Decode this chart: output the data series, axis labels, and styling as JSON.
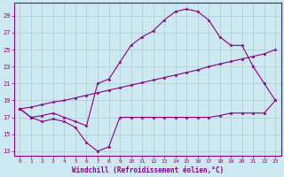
{
  "xlabel": "Windchill (Refroidissement éolien,°C)",
  "bg_color": "#cce8f0",
  "line_color": "#880088",
  "grid_color": "#aacccc",
  "xlim": [
    -0.5,
    23.5
  ],
  "ylim": [
    12.5,
    30.5
  ],
  "yticks": [
    13,
    15,
    17,
    19,
    21,
    23,
    25,
    27,
    29
  ],
  "xticks": [
    0,
    1,
    2,
    3,
    4,
    5,
    6,
    7,
    8,
    9,
    10,
    11,
    12,
    13,
    14,
    15,
    16,
    17,
    18,
    19,
    20,
    21,
    22,
    23
  ],
  "line1_x": [
    0,
    1,
    2,
    3,
    4,
    5,
    6,
    7,
    8,
    9,
    10,
    11,
    12,
    13,
    14,
    15,
    16,
    17,
    18,
    19,
    20,
    21,
    22,
    23
  ],
  "line1_y": [
    18.0,
    17.0,
    17.2,
    17.5,
    17.0,
    16.5,
    16.0,
    21.0,
    21.5,
    23.5,
    25.5,
    26.5,
    27.2,
    28.5,
    29.5,
    29.8,
    29.5,
    28.5,
    26.5,
    25.5,
    25.5,
    23.0,
    21.0,
    19.0
  ],
  "line2_x": [
    0,
    1,
    2,
    3,
    4,
    5,
    6,
    7,
    8,
    9,
    10,
    11,
    12,
    13,
    14,
    15,
    16,
    17,
    18,
    19,
    20,
    21,
    22,
    23
  ],
  "line2_y": [
    18.0,
    17.0,
    16.5,
    16.8,
    16.5,
    15.8,
    14.0,
    13.0,
    13.5,
    17.0,
    17.0,
    17.0,
    17.0,
    17.0,
    17.0,
    17.0,
    17.0,
    17.0,
    17.2,
    17.5,
    17.5,
    17.5,
    17.5,
    19.0
  ],
  "line3_x": [
    0,
    1,
    2,
    3,
    4,
    5,
    6,
    7,
    8,
    9,
    10,
    11,
    12,
    13,
    14,
    15,
    16,
    17,
    18,
    19,
    20,
    21,
    22,
    23
  ],
  "line3_y": [
    18.0,
    18.2,
    18.5,
    18.8,
    19.0,
    19.3,
    19.6,
    19.9,
    20.2,
    20.5,
    20.8,
    21.1,
    21.4,
    21.7,
    22.0,
    22.3,
    22.6,
    23.0,
    23.3,
    23.6,
    23.9,
    24.2,
    24.5,
    25.0
  ]
}
